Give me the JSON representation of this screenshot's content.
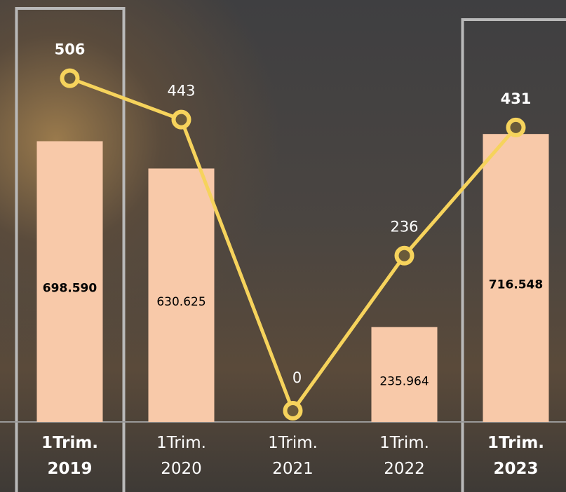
{
  "chart_data": {
    "type": "bar-line",
    "categories": [
      "1Trim. 2019",
      "1Trim. 2020",
      "1Trim. 2021",
      "1Trim. 2022",
      "1Trim. 2023"
    ],
    "highlight": [
      0,
      4
    ],
    "series": [
      {
        "type": "bar",
        "color": "#f8c9a9",
        "values": [
          698590,
          630625,
          null,
          235964,
          716548
        ],
        "value_labels": [
          "698.590",
          "630.625",
          null,
          "235.964",
          "716.548"
        ]
      },
      {
        "type": "line",
        "axis": "y2",
        "color": "#f6d35c",
        "values": [
          506,
          443,
          0,
          236,
          431
        ]
      }
    ],
    "ylim": [
      0,
      1050000
    ],
    "y2lim": [
      0,
      625
    ]
  }
}
